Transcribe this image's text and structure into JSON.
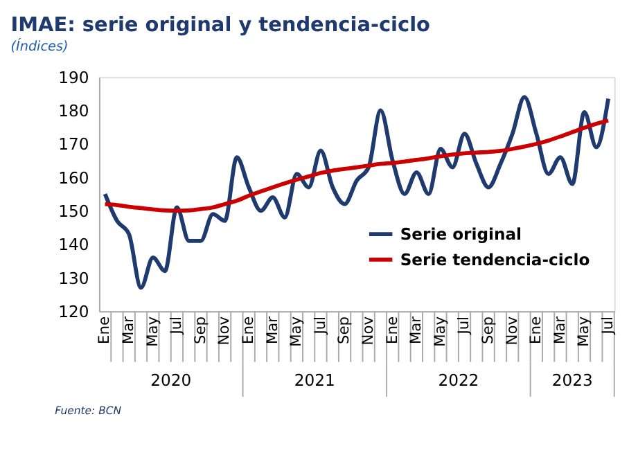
{
  "chart_data": {
    "type": "line",
    "title": "IMAE: serie original y tendencia-ciclo",
    "subtitle": "(Índices)",
    "categories": [
      "Ene",
      null,
      "Mar",
      null,
      "May",
      null,
      "Jul",
      null,
      "Sep",
      null,
      "Nov",
      null,
      "Ene",
      null,
      "Mar",
      null,
      "May",
      null,
      "Jul",
      null,
      "Sep",
      null,
      "Nov",
      null,
      "Ene",
      null,
      "Mar",
      null,
      "May",
      null,
      "Jul",
      null,
      "Sep",
      null,
      "Nov",
      null,
      "Ene",
      null,
      "Mar",
      null,
      "May",
      null,
      "Jul"
    ],
    "series": [
      {
        "name": "Serie original",
        "color": "#1f3a6e",
        "values": [
          155,
          147,
          143,
          127,
          136,
          132,
          151,
          141,
          141,
          149,
          147,
          166,
          157,
          150,
          154,
          148,
          161,
          157,
          168,
          157,
          152,
          159,
          163,
          180,
          165,
          155,
          161.5,
          155,
          168.5,
          163,
          173,
          164,
          157,
          164,
          173,
          184,
          173,
          161,
          166,
          158,
          179.5,
          169,
          183.5
        ]
      },
      {
        "name": "Serie tendencia-ciclo",
        "color": "#cc0000",
        "values": [
          152,
          151.7,
          151.2,
          150.8,
          150.4,
          150.1,
          150,
          150.1,
          150.5,
          151,
          152,
          153,
          154.5,
          155.8,
          157,
          158.2,
          159.3,
          160.3,
          161.3,
          162,
          162.5,
          163,
          163.5,
          164,
          164.3,
          164.7,
          165.2,
          165.7,
          166.3,
          166.8,
          167.2,
          167.4,
          167.6,
          167.9,
          168.5,
          169.2,
          170,
          171,
          172.2,
          173.5,
          174.8,
          176,
          177
        ]
      }
    ],
    "ylim": [
      120,
      190
    ],
    "yticks": [
      120,
      130,
      140,
      150,
      160,
      170,
      180,
      190
    ],
    "grid": false,
    "legend": "bottom right",
    "marker": "none",
    "line_style": "solid",
    "annotations": [
      "2020",
      "2021",
      "2022",
      "2023",
      "Fuente: BCN"
    ]
  }
}
